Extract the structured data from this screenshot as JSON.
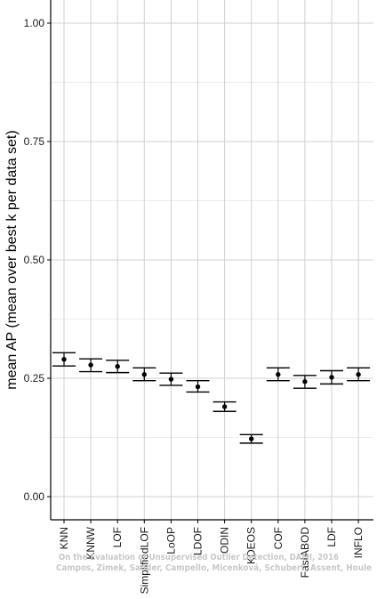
{
  "chart_data": {
    "type": "errorbar",
    "ylabel": "mean AP (mean over best k per data set)",
    "xlabel": "",
    "ylim": [
      0,
      1.05
    ],
    "yticks": [
      0.0,
      0.25,
      0.5,
      0.75,
      1.0
    ],
    "ytick_labels": [
      "0.00",
      "0.25",
      "0.50",
      "0.75",
      "1.00"
    ],
    "grid": true,
    "categories": [
      "KNN",
      "KNNW",
      "LOF",
      "SimplifiedLOF",
      "LoOP",
      "LDOF",
      "ODIN",
      "KDEOS",
      "COF",
      "FastABOD",
      "LDF",
      "INFLO"
    ],
    "values": [
      0.29,
      0.278,
      0.275,
      0.258,
      0.248,
      0.232,
      0.19,
      0.122,
      0.258,
      0.243,
      0.252,
      0.258
    ],
    "upper": [
      0.304,
      0.291,
      0.288,
      0.272,
      0.261,
      0.245,
      0.2,
      0.131,
      0.272,
      0.256,
      0.266,
      0.272
    ],
    "lower": [
      0.276,
      0.264,
      0.262,
      0.245,
      0.235,
      0.221,
      0.18,
      0.113,
      0.245,
      0.229,
      0.238,
      0.245
    ]
  },
  "watermark": {
    "line1": "On the Evaluation of Unsupervised Outlier Detection, DAMI, 2016",
    "line2": "Campos, Zimek, Sander, Campello, Micenková, Schubert, Assent, Houle"
  },
  "colors": {
    "grid_major": "#d0d0d0",
    "grid_minor": "#ececec",
    "axis": "#000000",
    "mark": "#000000"
  }
}
